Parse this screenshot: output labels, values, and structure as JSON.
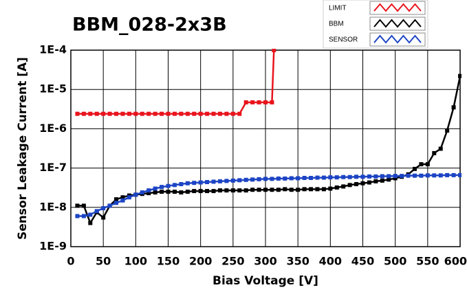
{
  "chart_data": {
    "type": "line",
    "title": "BBM_028-2x3B",
    "x_label": "Bias Voltage [V]",
    "y_label": "Sensor Leakage Current [A]",
    "xlim": [
      0,
      600
    ],
    "xticks": [
      0,
      50,
      100,
      150,
      200,
      250,
      300,
      350,
      400,
      450,
      500,
      550,
      600
    ],
    "ylim": [
      1e-09,
      0.0001
    ],
    "ylog": true,
    "grid": true,
    "legend": "top-right",
    "yticks": [
      {
        "value": 1e-09,
        "label": "1E-9"
      },
      {
        "value": 1e-08,
        "label": "1E-8"
      },
      {
        "value": 1e-07,
        "label": "1E-7"
      },
      {
        "value": 1e-06,
        "label": "1E-6"
      },
      {
        "value": 1e-05,
        "label": "1E-5"
      },
      {
        "value": 0.0001,
        "label": "1E-4"
      }
    ],
    "series": [
      {
        "name": "LIMIT",
        "color": "#e8141c",
        "x": [
          10,
          20,
          30,
          40,
          50,
          60,
          70,
          80,
          90,
          100,
          110,
          120,
          130,
          140,
          150,
          160,
          170,
          180,
          190,
          200,
          210,
          220,
          230,
          240,
          250,
          260,
          270,
          280,
          290,
          300,
          310,
          313
        ],
        "values": [
          2.4e-06,
          2.4e-06,
          2.4e-06,
          2.4e-06,
          2.4e-06,
          2.4e-06,
          2.4e-06,
          2.4e-06,
          2.4e-06,
          2.4e-06,
          2.4e-06,
          2.4e-06,
          2.4e-06,
          2.4e-06,
          2.4e-06,
          2.4e-06,
          2.4e-06,
          2.4e-06,
          2.4e-06,
          2.4e-06,
          2.4e-06,
          2.4e-06,
          2.4e-06,
          2.4e-06,
          2.4e-06,
          2.4e-06,
          4.7e-06,
          4.7e-06,
          4.7e-06,
          4.7e-06,
          4.7e-06,
          0.0001
        ]
      },
      {
        "name": "BBM",
        "color": "#000000",
        "x": [
          10,
          20,
          30,
          40,
          50,
          60,
          70,
          80,
          90,
          100,
          110,
          120,
          130,
          140,
          150,
          160,
          170,
          180,
          190,
          200,
          210,
          220,
          230,
          240,
          250,
          260,
          270,
          280,
          290,
          300,
          310,
          320,
          330,
          340,
          350,
          360,
          370,
          380,
          390,
          400,
          410,
          420,
          430,
          440,
          450,
          460,
          470,
          480,
          490,
          500,
          510,
          520,
          530,
          540,
          550,
          560,
          570,
          580,
          590,
          600
        ],
        "values": [
          1.1e-08,
          1.1e-08,
          4e-09,
          7.5e-09,
          5.5e-09,
          1.1e-08,
          1.6e-08,
          1.8e-08,
          2e-08,
          2.1e-08,
          2.2e-08,
          2.3e-08,
          2.4e-08,
          2.5e-08,
          2.5e-08,
          2.5e-08,
          2.4e-08,
          2.5e-08,
          2.6e-08,
          2.6e-08,
          2.6e-08,
          2.6e-08,
          2.7e-08,
          2.7e-08,
          2.7e-08,
          2.7e-08,
          2.7e-08,
          2.8e-08,
          2.8e-08,
          2.8e-08,
          2.8e-08,
          2.8e-08,
          2.9e-08,
          2.8e-08,
          2.8e-08,
          2.9e-08,
          2.9e-08,
          2.9e-08,
          2.9e-08,
          3e-08,
          3.2e-08,
          3.4e-08,
          3.7e-08,
          3.9e-08,
          4.1e-08,
          4.3e-08,
          4.6e-08,
          4.8e-08,
          5.1e-08,
          5.5e-08,
          6e-08,
          6.9e-08,
          9.5e-08,
          1.25e-07,
          1.25e-07,
          2.4e-07,
          3.1e-07,
          9e-07,
          3.5e-06,
          2.2e-05
        ]
      },
      {
        "name": "SENSOR",
        "color": "#1c44c4",
        "x": [
          10,
          20,
          30,
          40,
          50,
          60,
          70,
          80,
          90,
          100,
          110,
          120,
          130,
          140,
          150,
          160,
          170,
          180,
          190,
          200,
          210,
          220,
          230,
          240,
          250,
          260,
          270,
          280,
          290,
          300,
          310,
          320,
          330,
          340,
          350,
          360,
          370,
          380,
          390,
          400,
          410,
          420,
          430,
          440,
          450,
          460,
          470,
          480,
          490,
          500,
          510,
          520,
          530,
          540,
          550,
          560,
          570,
          580,
          590,
          600
        ],
        "values": [
          6e-09,
          6e-09,
          6.5e-09,
          8e-09,
          9.5e-09,
          1.1e-08,
          1.3e-08,
          1.5e-08,
          1.8e-08,
          2.1e-08,
          2.4e-08,
          2.7e-08,
          3e-08,
          3.3e-08,
          3.5e-08,
          3.7e-08,
          3.9e-08,
          4.1e-08,
          4.2e-08,
          4.3e-08,
          4.4e-08,
          4.5e-08,
          4.6e-08,
          4.7e-08,
          4.8e-08,
          4.9e-08,
          5e-08,
          5.1e-08,
          5.2e-08,
          5.3e-08,
          5.3e-08,
          5.4e-08,
          5.4e-08,
          5.5e-08,
          5.5e-08,
          5.6e-08,
          5.6e-08,
          5.7e-08,
          5.7e-08,
          5.8e-08,
          5.8e-08,
          5.9e-08,
          5.9e-08,
          6e-08,
          6e-08,
          6.1e-08,
          6.1e-08,
          6.2e-08,
          6.2e-08,
          6.3e-08,
          6.3e-08,
          6.4e-08,
          6.4e-08,
          6.4e-08,
          6.5e-08,
          6.5e-08,
          6.5e-08,
          6.6e-08,
          6.6e-08,
          6.6e-08
        ]
      }
    ]
  }
}
